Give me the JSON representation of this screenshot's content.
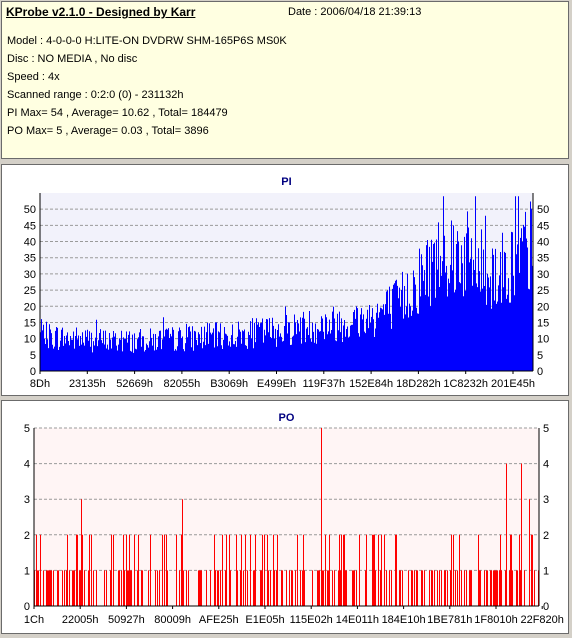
{
  "info": {
    "title": "KProbe v2.1.0 - Designed by Karr",
    "date": "Date : 2006/04/18 21:39:13",
    "model": "Model : 4-0-0-0 H:LITE-ON DVDRW SHM-165P6S MS0K",
    "disc": "Disc : NO MEDIA , No disc",
    "speed": "Speed : 4x",
    "range": "Scanned range : 0:2:0 (0) - 231132h",
    "pi_summary": "PI Max= 54 , Average= 10.62 , Total= 184479",
    "po_summary": "PO Max= 5 , Average= 0.03 , Total= 3896"
  },
  "chart_data": [
    {
      "type": "bar",
      "title": "PI",
      "ylim": [
        0,
        55
      ],
      "yticks": [
        0,
        5,
        10,
        15,
        20,
        25,
        30,
        35,
        40,
        45,
        50
      ],
      "xtick_labels": [
        "8Dh",
        "23135h",
        "52669h",
        "82055h",
        "B3069h",
        "E499Eh",
        "119F37h",
        "152E84h",
        "18D282h",
        "1C8232h",
        "201E45h"
      ],
      "grid": true,
      "color": "#0000ff",
      "max": 54,
      "average": 10.62,
      "profile": [
        [
          0,
          12
        ],
        [
          0.05,
          11
        ],
        [
          0.1,
          10.5
        ],
        [
          0.15,
          10
        ],
        [
          0.2,
          10
        ],
        [
          0.25,
          10.5
        ],
        [
          0.3,
          11
        ],
        [
          0.35,
          11.5
        ],
        [
          0.4,
          12
        ],
        [
          0.45,
          13
        ],
        [
          0.5,
          14
        ],
        [
          0.55,
          15
        ],
        [
          0.6,
          16
        ],
        [
          0.65,
          17
        ],
        [
          0.68,
          19
        ],
        [
          0.72,
          22
        ],
        [
          0.75,
          27
        ],
        [
          0.78,
          33
        ],
        [
          0.8,
          37
        ],
        [
          0.83,
          40
        ],
        [
          0.86,
          39
        ],
        [
          0.88,
          36
        ],
        [
          0.9,
          34
        ],
        [
          0.93,
          33
        ],
        [
          0.96,
          36
        ],
        [
          1.0,
          42
        ]
      ]
    },
    {
      "type": "bar",
      "title": "PO",
      "ylim": [
        0,
        5
      ],
      "yticks": [
        0,
        1,
        2,
        3,
        4,
        5
      ],
      "xtick_labels": [
        "1Ch",
        "22005h",
        "50927h",
        "80009h",
        "AFE25h",
        "E1E05h",
        "115E02h",
        "14E011h",
        "184E10h",
        "1BE781h",
        "1F8010h",
        "22F820h"
      ],
      "grid": true,
      "color": "#ff0000",
      "max": 5,
      "average": 0.03,
      "spikes": [
        [
          0.094,
          3
        ],
        [
          0.293,
          3
        ],
        [
          0.568,
          5
        ],
        [
          0.934,
          4
        ],
        [
          0.964,
          4
        ],
        [
          0.98,
          3
        ]
      ]
    }
  ]
}
